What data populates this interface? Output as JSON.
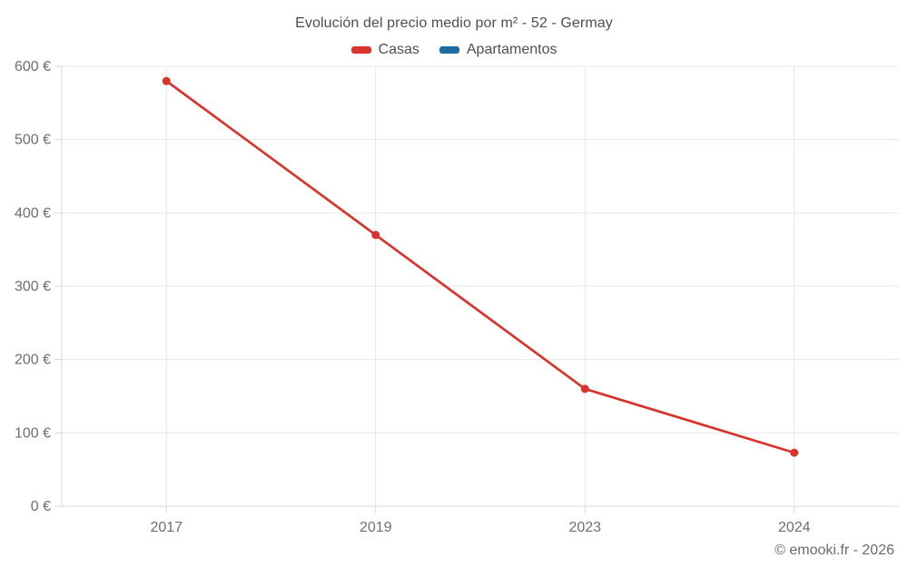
{
  "title": "Evolución del precio medio por m² - 52 - Germay",
  "footer": "© emooki.fr - 2026",
  "colors": {
    "grid": "#e8e8e8",
    "axis": "#d9d9d9",
    "tick_label": "#6e6e6e",
    "casas": "#d9342b",
    "apartamentos": "#1c6d9d"
  },
  "chart_data": {
    "type": "line",
    "categories": [
      "2017",
      "2019",
      "2023",
      "2024"
    ],
    "series": [
      {
        "name": "Casas",
        "color": "#d9342b",
        "values": [
          580,
          370,
          160,
          73
        ]
      },
      {
        "name": "Apartamentos",
        "color": "#1c6d9d",
        "values": []
      }
    ],
    "title": "Evolución del precio medio por m² - 52 - Germay",
    "xlabel": "",
    "ylabel": "",
    "y_ticks": [
      0,
      100,
      200,
      300,
      400,
      500,
      600
    ],
    "y_tick_suffix": " €",
    "ylim": [
      0,
      600
    ],
    "grid": true,
    "legend_position": "top"
  }
}
